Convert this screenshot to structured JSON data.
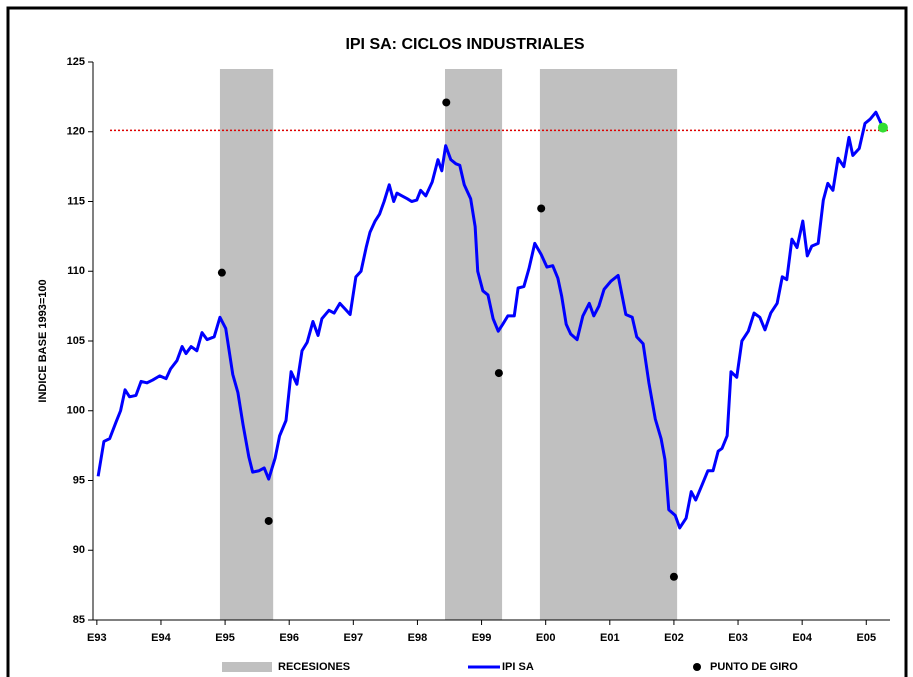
{
  "chart_data": {
    "type": "line",
    "title": "IPI SA: CICLOS INDUSTRIALES",
    "y_label": "INDICE BASE 1993=100",
    "xlim": [
      1992.94,
      2005.37
    ],
    "ylim": [
      85,
      125
    ],
    "yticks": [
      85,
      90,
      95,
      100,
      105,
      110,
      115,
      120,
      125
    ],
    "xticks": [
      {
        "value": 1993,
        "label": "E93"
      },
      {
        "value": 1994,
        "label": "E94"
      },
      {
        "value": 1995,
        "label": "E95"
      },
      {
        "value": 1996,
        "label": "E96"
      },
      {
        "value": 1997,
        "label": "E97"
      },
      {
        "value": 1998,
        "label": "E98"
      },
      {
        "value": 1999,
        "label": "E99"
      },
      {
        "value": 2000,
        "label": "E00"
      },
      {
        "value": 2001,
        "label": "E01"
      },
      {
        "value": 2002,
        "label": "E02"
      },
      {
        "value": 2003,
        "label": "E03"
      },
      {
        "value": 2004,
        "label": "E04"
      },
      {
        "value": 2005,
        "label": "E05"
      }
    ],
    "recessions": {
      "name": "RECESIONES",
      "color": "#c0c0c0",
      "ranges": [
        [
          1994.92,
          1995.75
        ],
        [
          1998.43,
          1999.32
        ],
        [
          1999.91,
          2002.05
        ]
      ]
    },
    "reference_line": {
      "value": 120.1,
      "color": "#dd0000"
    },
    "series": [
      {
        "name": "IPI SA",
        "color": "#0000ff",
        "x": [
          1993.02,
          1993.11,
          1993.2,
          1993.3,
          1993.37,
          1993.44,
          1993.51,
          1993.61,
          1993.69,
          1993.78,
          1993.87,
          1993.98,
          1994.08,
          1994.15,
          1994.25,
          1994.33,
          1994.39,
          1994.47,
          1994.56,
          1994.64,
          1994.72,
          1994.83,
          1994.92,
          1995.01,
          1995.12,
          1995.2,
          1995.28,
          1995.37,
          1995.43,
          1995.53,
          1995.61,
          1995.68,
          1995.78,
          1995.85,
          1995.95,
          1996.03,
          1996.12,
          1996.2,
          1996.28,
          1996.37,
          1996.45,
          1996.51,
          1996.62,
          1996.7,
          1996.79,
          1996.87,
          1996.95,
          1997.04,
          1997.12,
          1997.2,
          1997.26,
          1997.34,
          1997.41,
          1997.48,
          1997.56,
          1997.63,
          1997.68,
          1997.76,
          1997.84,
          1997.91,
          1997.99,
          1998.05,
          1998.13,
          1998.23,
          1998.32,
          1998.38,
          1998.44,
          1998.52,
          1998.6,
          1998.66,
          1998.73,
          1998.77,
          1998.83,
          1998.9,
          1998.94,
          1999.02,
          1999.1,
          1999.18,
          1999.26,
          1999.33,
          1999.41,
          1999.51,
          1999.57,
          1999.66,
          1999.74,
          1999.83,
          1999.93,
          2000.02,
          2000.11,
          2000.19,
          2000.25,
          2000.32,
          2000.39,
          2000.49,
          2000.58,
          2000.68,
          2000.75,
          2000.83,
          2000.91,
          2001.02,
          2001.13,
          2001.19,
          2001.25,
          2001.35,
          2001.42,
          2001.52,
          2001.61,
          2001.71,
          2001.8,
          2001.86,
          2001.92,
          2002.02,
          2002.09,
          2002.19,
          2002.27,
          2002.34,
          2002.44,
          2002.53,
          2002.61,
          2002.69,
          2002.75,
          2002.83,
          2002.89,
          2002.98,
          2003.06,
          2003.16,
          2003.25,
          2003.34,
          2003.42,
          2003.51,
          2003.61,
          2003.69,
          2003.76,
          2003.84,
          2003.92,
          2004.01,
          2004.08,
          2004.15,
          2004.25,
          2004.33,
          2004.4,
          2004.48,
          2004.56,
          2004.65,
          2004.73,
          2004.79,
          2004.89,
          2004.98,
          2005.06,
          2005.15,
          2005.25
        ],
        "values": [
          95.3,
          97.8,
          98.0,
          99.2,
          100.0,
          101.5,
          101.0,
          101.1,
          102.1,
          102.0,
          102.2,
          102.5,
          102.3,
          103.0,
          103.6,
          104.6,
          104.1,
          104.6,
          104.3,
          105.6,
          105.1,
          105.3,
          106.7,
          105.9,
          102.6,
          101.3,
          99.0,
          96.7,
          95.6,
          95.7,
          95.9,
          95.1,
          96.6,
          98.2,
          99.3,
          102.8,
          101.9,
          104.3,
          104.9,
          106.4,
          105.4,
          106.6,
          107.2,
          107.0,
          107.7,
          107.3,
          106.9,
          109.6,
          110.0,
          111.7,
          112.8,
          113.6,
          114.1,
          115.0,
          116.2,
          115.0,
          115.6,
          115.4,
          115.2,
          115.0,
          115.1,
          115.8,
          115.4,
          116.4,
          118.0,
          117.2,
          119.0,
          118.0,
          117.7,
          117.6,
          116.2,
          115.8,
          115.2,
          113.2,
          110.0,
          108.6,
          108.3,
          106.6,
          105.7,
          106.2,
          106.8,
          106.8,
          108.8,
          108.9,
          110.2,
          112.0,
          111.2,
          110.3,
          110.4,
          109.5,
          108.2,
          106.2,
          105.5,
          105.1,
          106.8,
          107.7,
          106.8,
          107.5,
          108.7,
          109.3,
          109.7,
          108.3,
          106.9,
          106.7,
          105.3,
          104.8,
          102.0,
          99.4,
          98.0,
          96.5,
          92.9,
          92.5,
          91.6,
          92.3,
          94.2,
          93.6,
          94.7,
          95.7,
          95.7,
          97.1,
          97.3,
          98.2,
          102.8,
          102.4,
          105.0,
          105.7,
          107.0,
          106.7,
          105.8,
          107.0,
          107.7,
          109.6,
          109.4,
          112.3,
          111.7,
          113.6,
          111.1,
          111.8,
          112.0,
          115.1,
          116.3,
          115.8,
          118.1,
          117.5,
          119.6,
          118.3,
          118.8,
          120.6,
          120.9,
          121.4,
          120.4
        ]
      }
    ],
    "turning_points": {
      "name": "PUNTO DE GIRO",
      "color": "#000000",
      "x": [
        1994.95,
        1995.68,
        1998.45,
        1999.27,
        1999.93,
        2002.0
      ],
      "values": [
        109.9,
        92.1,
        122.1,
        102.7,
        114.5,
        88.1
      ]
    },
    "last_point": {
      "color": "#33dd33",
      "x": [
        2005.26
      ],
      "values": [
        120.3
      ]
    }
  }
}
